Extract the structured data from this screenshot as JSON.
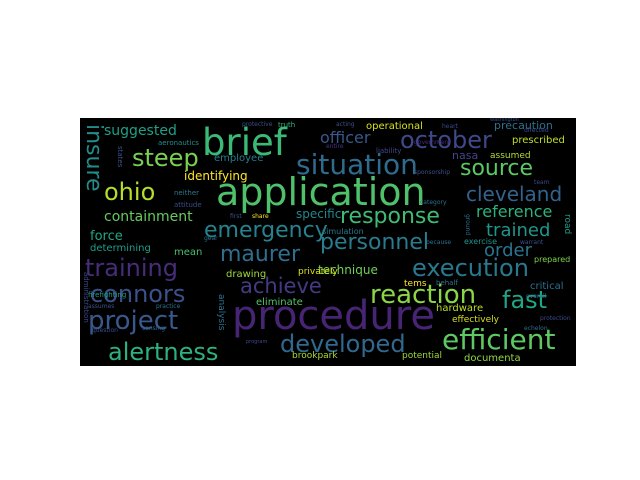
{
  "background": "#000000",
  "words": [
    {
      "text": "application",
      "color": "#4fc16b"
    },
    {
      "text": "procedure",
      "color": "#482475"
    },
    {
      "text": "brief",
      "color": "#3aba76"
    },
    {
      "text": "situation",
      "color": "#2f6b8e"
    },
    {
      "text": "source",
      "color": "#5cc863"
    },
    {
      "text": "october",
      "color": "#3e4989"
    },
    {
      "text": "developed",
      "color": "#31688e"
    },
    {
      "text": "efficient",
      "color": "#5ec962"
    },
    {
      "text": "alertness",
      "color": "#2db27d"
    },
    {
      "text": "project",
      "color": "#38598c"
    },
    {
      "text": "connors",
      "color": "#3b518b"
    },
    {
      "text": "training",
      "color": "#472c7a"
    },
    {
      "text": "reaction",
      "color": "#8bd646"
    },
    {
      "text": "execution",
      "color": "#2a788e"
    },
    {
      "text": "fast",
      "color": "#21a685"
    },
    {
      "text": "achieve",
      "color": "#443a83"
    },
    {
      "text": "personnel",
      "color": "#297b8e"
    },
    {
      "text": "emergency",
      "color": "#26828e"
    },
    {
      "text": "response",
      "color": "#3fbc73"
    },
    {
      "text": "maurer",
      "color": "#2e6e8e"
    },
    {
      "text": "ohio",
      "color": "#b5de2b"
    },
    {
      "text": "steep",
      "color": "#7ad151"
    },
    {
      "text": "insure",
      "color": "#228d8d"
    },
    {
      "text": "cleveland",
      "color": "#33638d"
    },
    {
      "text": "order",
      "color": "#2c738e"
    },
    {
      "text": "trained",
      "color": "#1f968b"
    },
    {
      "text": "reference",
      "color": "#2db27d"
    },
    {
      "text": "containment",
      "color": "#65cb5e"
    },
    {
      "text": "suggested",
      "color": "#1fa088"
    },
    {
      "text": "identifying",
      "color": "#fde725"
    },
    {
      "text": "officer",
      "color": "#38588c"
    },
    {
      "text": "force",
      "color": "#22a785"
    },
    {
      "text": "nasa",
      "color": "#414487"
    },
    {
      "text": "technique",
      "color": "#70cf57"
    },
    {
      "text": "specific",
      "color": "#24868e"
    },
    {
      "text": "operational",
      "color": "#d8e219"
    },
    {
      "text": "precaution",
      "color": "#2c718e"
    },
    {
      "text": "prescribed",
      "color": "#c2df23"
    },
    {
      "text": "assumed",
      "color": "#b0dd2f"
    },
    {
      "text": "employee",
      "color": "#287d8e"
    },
    {
      "text": "determining",
      "color": "#1f9e89"
    },
    {
      "text": "mean",
      "color": "#46c06f"
    },
    {
      "text": "drawing",
      "color": "#9dd93b"
    },
    {
      "text": "privately",
      "color": "#dde318"
    },
    {
      "text": "eliminate",
      "color": "#50c46a"
    },
    {
      "text": "tems",
      "color": "#fde725"
    },
    {
      "text": "hardware",
      "color": "#bddf26"
    },
    {
      "text": "critical",
      "color": "#2c718e"
    },
    {
      "text": "effectively",
      "color": "#d2e21b"
    },
    {
      "text": "potential",
      "color": "#9fda3a"
    },
    {
      "text": "documenta",
      "color": "#93d741"
    },
    {
      "text": "brookpark",
      "color": "#a8db34"
    },
    {
      "text": "exercise",
      "color": "#1f948c"
    },
    {
      "text": "road",
      "color": "#1f9a8a"
    },
    {
      "text": "prepared",
      "color": "#7fd34e"
    },
    {
      "text": "simulation",
      "color": "#2a788e"
    },
    {
      "text": "analysis",
      "color": "#2c728e"
    },
    {
      "text": "aeronautics",
      "color": "#218f8d"
    },
    {
      "text": "protective",
      "color": "#3b518b"
    },
    {
      "text": "truth",
      "color": "#31b57b"
    },
    {
      "text": "acting",
      "color": "#3b518b"
    },
    {
      "text": "entire",
      "color": "#46337e"
    },
    {
      "text": "liability",
      "color": "#3e4a89"
    },
    {
      "text": "directed",
      "color": "#3e4989"
    },
    {
      "text": "neither",
      "color": "#2a788e"
    },
    {
      "text": "attitude",
      "color": "#3e4a89"
    },
    {
      "text": "states",
      "color": "#3b528b"
    },
    {
      "text": "heart",
      "color": "#3e4989"
    },
    {
      "text": "category",
      "color": "#2c718e"
    },
    {
      "text": "behalf",
      "color": "#2a768e"
    },
    {
      "text": "warrant",
      "color": "#3b518b"
    },
    {
      "text": "overall",
      "color": "#2d708e"
    },
    {
      "text": "firefighting",
      "color": "#1f9e89"
    },
    {
      "text": "practice",
      "color": "#2c718e"
    },
    {
      "text": "assumes",
      "color": "#3b518b"
    },
    {
      "text": "question",
      "color": "#3b518b"
    },
    {
      "text": "sensing",
      "color": "#32648e"
    },
    {
      "text": "program",
      "color": "#3e4989"
    },
    {
      "text": "team",
      "color": "#3e4989"
    },
    {
      "text": "gear",
      "color": "#2d708e"
    },
    {
      "text": "first",
      "color": "#3b528b"
    },
    {
      "text": "share",
      "color": "#fde725"
    },
    {
      "text": "washington",
      "color": "#3b528b"
    },
    {
      "text": "administration",
      "color": "#3e4989"
    },
    {
      "text": "government",
      "color": "#472c7a"
    },
    {
      "text": "sponsorship",
      "color": "#3b518b"
    },
    {
      "text": "echelon",
      "color": "#2d708e"
    },
    {
      "text": "protection",
      "color": "#3e4989"
    },
    {
      "text": "because",
      "color": "#2c718e"
    },
    {
      "text": "ground",
      "color": "#2c728e"
    }
  ]
}
